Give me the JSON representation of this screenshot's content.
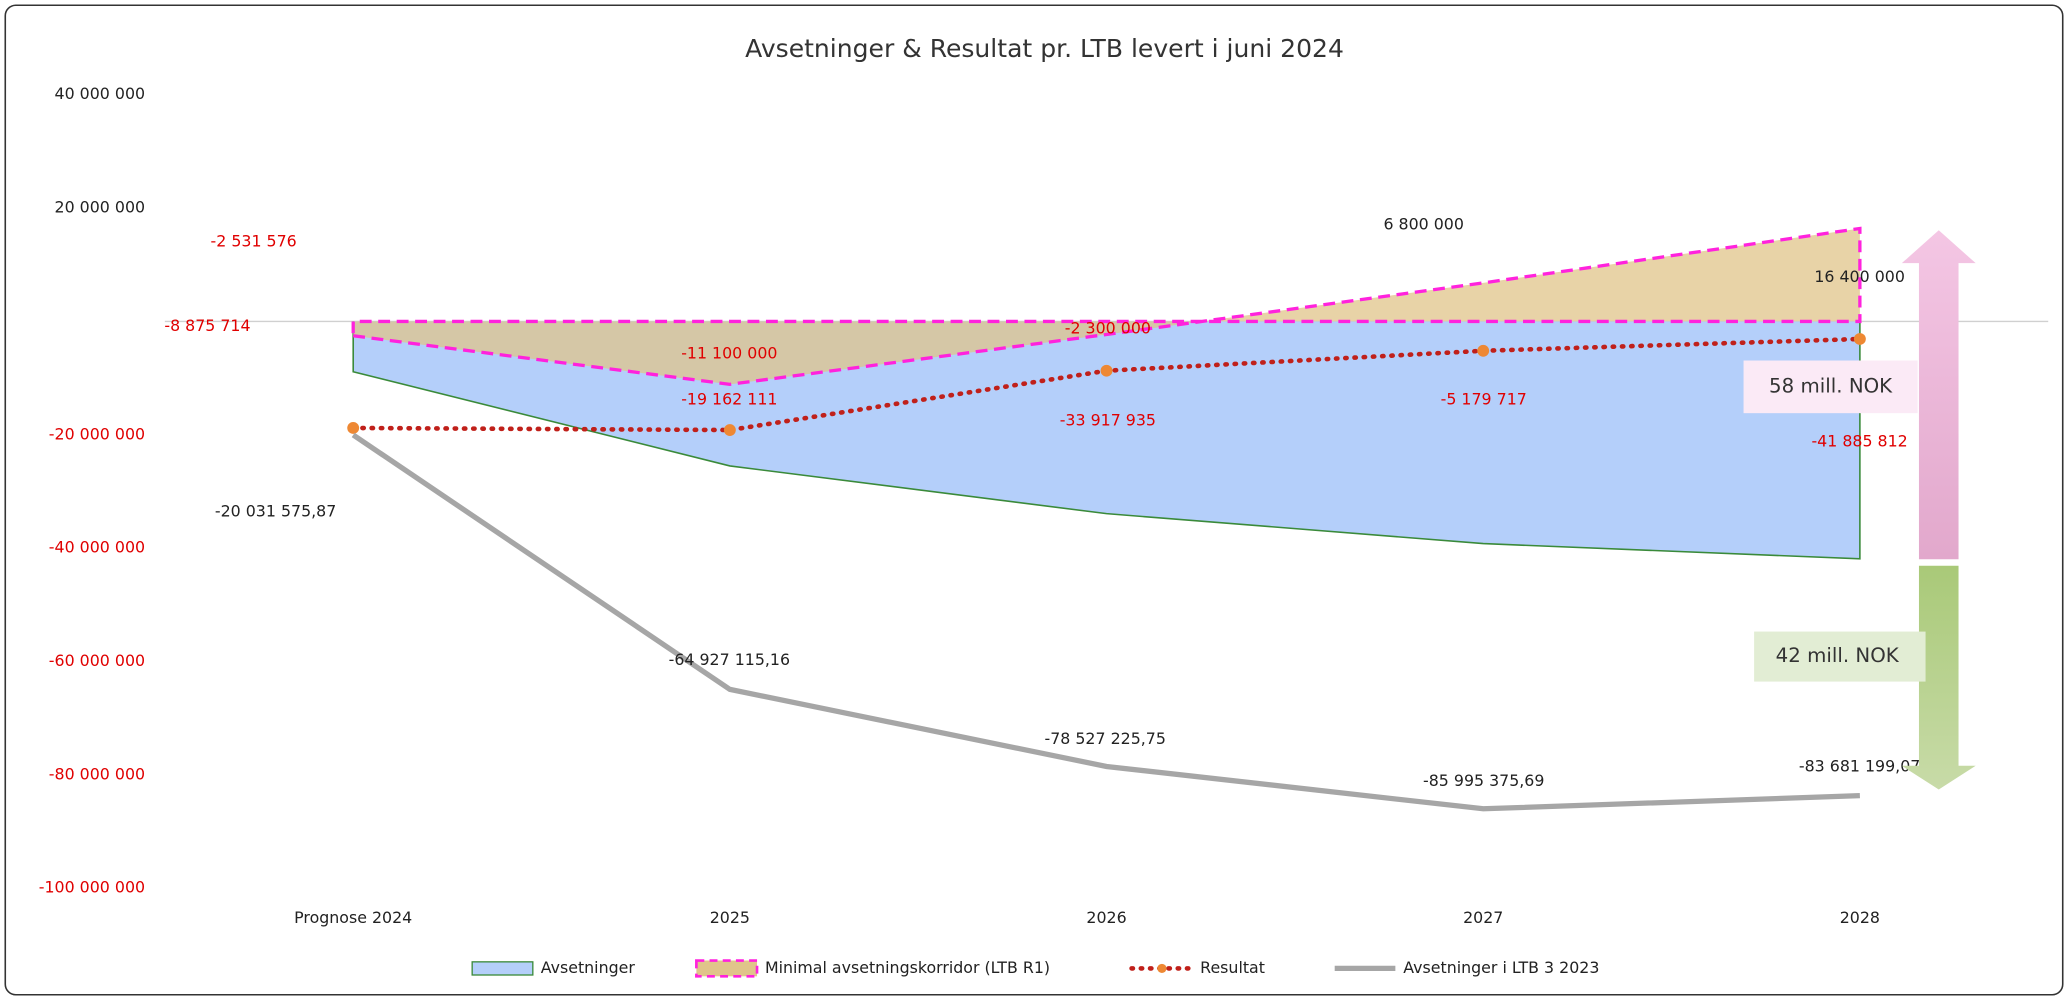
{
  "chart_data": {
    "type": "combo",
    "title": "Avsetninger & Resultat pr. LTB levert i juni 2024",
    "categories": [
      "Prognose 2024",
      "2025",
      "2026",
      "2027",
      "2028"
    ],
    "series": [
      {
        "name": "Avsetninger",
        "kind": "area",
        "color": "#b4cffa",
        "stroke": "#3a8a3a",
        "values": [
          -8875714,
          -25500000,
          -33917935,
          -39200000,
          -41885812
        ],
        "value_labels": [
          "-8 875 714",
          null,
          "-33 917 935",
          null,
          "-41 885 812"
        ]
      },
      {
        "name": "Minimal avsetningskorridor (LTB R1)",
        "kind": "corridor",
        "color": "#e0c48a",
        "stroke": "#ff22dd",
        "values": [
          -2531576,
          -11100000,
          -2300000,
          6800000,
          16400000
        ],
        "value_labels": [
          "-2 531 576",
          "-11 100 000",
          "-2 300 000",
          "6 800 000",
          "16 400 000"
        ]
      },
      {
        "name": "Resultat",
        "kind": "dotted",
        "color": "#c0201a",
        "marker": "#ee8833",
        "values": [
          -18800000,
          -19162111,
          -8700000,
          -5179717,
          -3100000
        ],
        "value_labels": [
          null,
          "-19 162 111",
          null,
          "-5 179 717",
          null
        ]
      },
      {
        "name": "Avsetninger i LTB 3 2023",
        "kind": "line",
        "color": "#a6a6a6",
        "values": [
          -20031575.87,
          -64927115.16,
          -78527225.75,
          -85995375.69,
          -83681199.07
        ],
        "value_labels": [
          "-20 031 575,87",
          "-64 927 115,16",
          "-78 527 225,75",
          "-85 995 375,69",
          "-83 681 199,07"
        ]
      }
    ],
    "ylim": [
      -100000000,
      40000000
    ],
    "yticks": [
      {
        "value": 40000000,
        "label": "40 000 000"
      },
      {
        "value": 20000000,
        "label": "20 000 000"
      },
      {
        "value": 0,
        "label": ""
      },
      {
        "value": -20000000,
        "label": "-20 000 000"
      },
      {
        "value": -40000000,
        "label": "-40 000 000"
      },
      {
        "value": -60000000,
        "label": "-60 000 000"
      },
      {
        "value": -80000000,
        "label": "-80 000 000"
      },
      {
        "value": -100000000,
        "label": "-100 000 000"
      }
    ],
    "annotations": [
      "58 mill. NOK",
      "42 mill. NOK"
    ]
  }
}
